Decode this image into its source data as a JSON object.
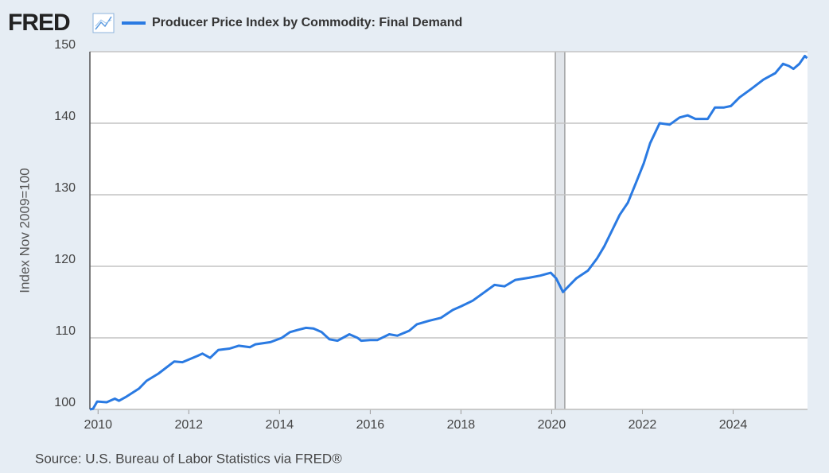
{
  "brand": "FRED",
  "source": "Source: U.S. Bureau of Labor Statistics via FRED®",
  "chart_data": {
    "type": "line",
    "y_label": "Index Nov 2009=100",
    "series": [
      {
        "name": "Producer Price Index by Commodity: Final Demand",
        "color": "#2a7ae2",
        "x": [
          2009.82,
          2009.89,
          2009.98,
          2010.19,
          2010.37,
          2010.46,
          2010.63,
          2010.9,
          2011.07,
          2011.33,
          2011.68,
          2011.86,
          2012.2,
          2012.3,
          2012.47,
          2012.65,
          2012.9,
          2013.1,
          2013.35,
          2013.47,
          2013.8,
          2014.05,
          2014.23,
          2014.4,
          2014.58,
          2014.75,
          2014.93,
          2015.1,
          2015.28,
          2015.54,
          2015.72,
          2015.8,
          2016.0,
          2016.16,
          2016.42,
          2016.6,
          2016.86,
          2017.03,
          2017.3,
          2017.56,
          2017.82,
          2018.0,
          2018.26,
          2018.5,
          2018.74,
          2018.96,
          2019.2,
          2019.5,
          2019.75,
          2019.98,
          2020.1,
          2020.25,
          2020.37,
          2020.54,
          2020.8,
          2021.0,
          2021.16,
          2021.33,
          2021.5,
          2021.68,
          2021.86,
          2022.03,
          2022.17,
          2022.38,
          2022.6,
          2022.82,
          2023.0,
          2023.17,
          2023.44,
          2023.6,
          2023.8,
          2023.95,
          2024.14,
          2024.4,
          2024.67,
          2024.93,
          2025.1,
          2025.23,
          2025.33,
          2025.46,
          2025.58,
          2025.63
        ],
        "values": [
          100.0,
          100.1,
          101.1,
          101.0,
          101.5,
          101.2,
          101.8,
          102.9,
          104.0,
          105.0,
          106.7,
          106.6,
          107.5,
          107.8,
          107.2,
          108.3,
          108.5,
          108.9,
          108.7,
          109.1,
          109.4,
          110.0,
          110.8,
          111.1,
          111.4,
          111.3,
          110.8,
          109.8,
          109.6,
          110.5,
          110.0,
          109.6,
          109.7,
          109.7,
          110.5,
          110.3,
          111.0,
          111.9,
          112.4,
          112.8,
          113.9,
          114.4,
          115.2,
          116.3,
          117.4,
          117.2,
          118.1,
          118.4,
          118.7,
          119.1,
          118.3,
          116.4,
          117.2,
          118.3,
          119.4,
          121.1,
          122.8,
          125.0,
          127.2,
          128.9,
          131.7,
          134.4,
          137.2,
          140.0,
          139.8,
          140.8,
          141.1,
          140.6,
          140.6,
          142.2,
          142.2,
          142.4,
          143.6,
          144.8,
          146.1,
          147.0,
          148.3,
          148.0,
          147.6,
          148.3,
          149.4,
          149.1
        ]
      }
    ],
    "shading": [
      2020.08,
      2020.29
    ],
    "xlim": [
      2009.82,
      2025.64
    ],
    "xticks": [
      2010,
      2012,
      2014,
      2016,
      2018,
      2020,
      2022,
      2024
    ],
    "ylim": [
      100,
      150
    ],
    "yticks": [
      100,
      110,
      120,
      130,
      140,
      150
    ],
    "grid": true
  }
}
